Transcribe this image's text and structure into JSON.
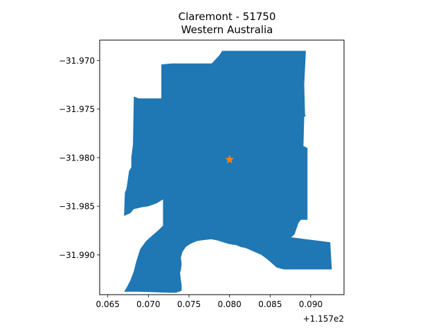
{
  "title": [
    "Claremont - 51750",
    "Western Australia"
  ],
  "chart_data": {
    "type": "map",
    "title": "Claremont - 51750\nWestern Australia",
    "xlabel": "",
    "ylabel": "",
    "xlim": [
      115.764,
      115.7941
    ],
    "ylim": [
      -31.9941,
      -31.9679
    ],
    "x_offset_label": "+1.157e2",
    "x_ticks": [
      {
        "value": 115.765,
        "label": "0.065"
      },
      {
        "value": 115.77,
        "label": "0.070"
      },
      {
        "value": 115.775,
        "label": "0.075"
      },
      {
        "value": 115.78,
        "label": "0.080"
      },
      {
        "value": 115.785,
        "label": "0.085"
      },
      {
        "value": 115.79,
        "label": "0.090"
      }
    ],
    "y_ticks": [
      {
        "value": -31.97,
        "label": "−31.970"
      },
      {
        "value": -31.975,
        "label": "−31.975"
      },
      {
        "value": -31.98,
        "label": "−31.980"
      },
      {
        "value": -31.985,
        "label": "−31.985"
      },
      {
        "value": -31.99,
        "label": "−31.990"
      }
    ],
    "grid": false,
    "region": {
      "name": "Claremont - 51750",
      "color": "#1f77b4",
      "outline": [
        [
          115.7685,
          -31.9738
        ],
        [
          115.7688,
          -31.9739
        ],
        [
          115.7716,
          -31.9739
        ],
        [
          115.7716,
          -31.9704
        ],
        [
          115.7729,
          -31.9703
        ],
        [
          115.7778,
          -31.9703
        ],
        [
          115.7787,
          -31.9695
        ],
        [
          115.7791,
          -31.969
        ],
        [
          115.7894,
          -31.969
        ],
        [
          115.7892,
          -31.9725
        ],
        [
          115.7893,
          -31.9756
        ],
        [
          115.7894,
          -31.9757
        ],
        [
          115.7892,
          -31.9758
        ],
        [
          115.7891,
          -31.9788
        ],
        [
          115.7896,
          -31.979
        ],
        [
          115.7896,
          -31.9864
        ],
        [
          115.7888,
          -31.9864
        ],
        [
          115.7885,
          -31.9867
        ],
        [
          115.788,
          -31.9879
        ],
        [
          115.7876,
          -31.9882
        ],
        [
          115.7924,
          -31.9887
        ],
        [
          115.7926,
          -31.9915
        ],
        [
          115.7867,
          -31.9915
        ],
        [
          115.7858,
          -31.9913
        ],
        [
          115.7847,
          -31.9905
        ],
        [
          115.7839,
          -31.99
        ],
        [
          115.782,
          -31.9893
        ],
        [
          115.7814,
          -31.9892
        ],
        [
          115.7808,
          -31.989
        ],
        [
          115.78,
          -31.9889
        ],
        [
          115.7792,
          -31.9887
        ],
        [
          115.7784,
          -31.9885
        ],
        [
          115.7777,
          -31.9884
        ],
        [
          115.7767,
          -31.9885
        ],
        [
          115.7759,
          -31.9886
        ],
        [
          115.7751,
          -31.9889
        ],
        [
          115.7746,
          -31.9892
        ],
        [
          115.7742,
          -31.9897
        ],
        [
          115.774,
          -31.9903
        ],
        [
          115.7741,
          -31.9909
        ],
        [
          115.774,
          -31.9916
        ],
        [
          115.7739,
          -31.9918
        ],
        [
          115.774,
          -31.9926
        ],
        [
          115.7741,
          -31.9931
        ],
        [
          115.7741,
          -31.9937
        ],
        [
          115.7734,
          -31.9939
        ],
        [
          115.7727,
          -31.9939
        ],
        [
          115.7688,
          -31.9938
        ],
        [
          115.767,
          -31.9938
        ],
        [
          115.7673,
          -31.9934
        ],
        [
          115.7678,
          -31.9926
        ],
        [
          115.7682,
          -31.9917
        ],
        [
          115.7685,
          -31.9907
        ],
        [
          115.769,
          -31.9894
        ],
        [
          115.7697,
          -31.9886
        ],
        [
          115.7705,
          -31.988
        ],
        [
          115.7712,
          -31.9875
        ],
        [
          115.7718,
          -31.987
        ],
        [
          115.7718,
          -31.9843
        ],
        [
          115.771,
          -31.9847
        ],
        [
          115.77,
          -31.985
        ],
        [
          115.7692,
          -31.9851
        ],
        [
          115.7682,
          -31.9853
        ],
        [
          115.7678,
          -31.9857
        ],
        [
          115.767,
          -31.986
        ],
        [
          115.7671,
          -31.9836
        ],
        [
          115.7673,
          -31.9832
        ],
        [
          115.7676,
          -31.9815
        ],
        [
          115.7676,
          -31.9814
        ],
        [
          115.7679,
          -31.981
        ],
        [
          115.7679,
          -31.98
        ],
        [
          115.7681,
          -31.9786
        ],
        [
          115.7682,
          -31.9737
        ]
      ]
    },
    "marker": {
      "x": 115.78,
      "y": -31.9802,
      "symbol": "star",
      "color": "#ff7f0e"
    }
  }
}
